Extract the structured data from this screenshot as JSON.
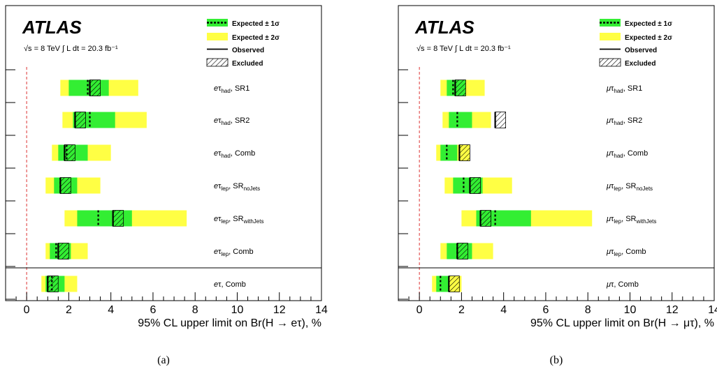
{
  "panels": [
    {
      "caption": "(a)",
      "experiment": "ATLAS",
      "energy": "√s = 8 TeV",
      "lumi": "∫ L dt = 20.3 fb⁻¹",
      "axis_label": "95% CL upper limit on Br(H → eτ), %",
      "legend": [
        "Expected ± 1σ",
        "Expected ± 2σ",
        "Observed",
        "Excluded"
      ]
    },
    {
      "caption": "(b)",
      "experiment": "ATLAS",
      "energy": "√s = 8 TeV",
      "lumi": "∫ L dt = 20.3 fb⁻¹",
      "axis_label": "95% CL upper limit on Br(H → μτ), %",
      "legend": [
        "Expected ± 1σ",
        "Expected ± 2σ",
        "Observed",
        "Excluded"
      ]
    }
  ],
  "colors": {
    "one_sigma": "#33ee33",
    "two_sigma": "#ffff44",
    "zero_line": "#dd3333"
  },
  "chart_data": [
    {
      "type": "bar",
      "xlim": [
        -1,
        14
      ],
      "xticks": [
        0,
        2,
        4,
        6,
        8,
        10,
        12,
        14
      ],
      "xlabel": "95% CL upper limit on Br(H → eτ), %",
      "legend": [
        "Expected ± 1σ",
        "Expected ± 2σ",
        "Observed",
        "Excluded"
      ],
      "categories": [
        {
          "lep": "e",
          "tau": "had",
          "tail": "SR1",
          "tailsub": ""
        },
        {
          "lep": "e",
          "tau": "had",
          "tail": "SR2",
          "tailsub": ""
        },
        {
          "lep": "e",
          "tau": "had",
          "tail": "Comb",
          "tailsub": ""
        },
        {
          "lep": "e",
          "tau": "lep",
          "tail": "SR",
          "tailsub": "noJets"
        },
        {
          "lep": "e",
          "tau": "lep",
          "tail": "SR",
          "tailsub": "withJets"
        },
        {
          "lep": "e",
          "tau": "lep",
          "tail": "Comb",
          "tailsub": ""
        },
        {
          "lep": "e",
          "tau": "",
          "tail": "Comb",
          "tailsub": ""
        }
      ],
      "expected": [
        2.9,
        3.0,
        1.9,
        1.6,
        3.4,
        1.4,
        1.2
      ],
      "observed": [
        3.0,
        2.3,
        1.8,
        1.6,
        4.1,
        1.5,
        1.0
      ],
      "sigma1_lo": [
        2.0,
        2.2,
        1.5,
        1.3,
        2.4,
        1.1,
        0.9
      ],
      "sigma1_hi": [
        3.9,
        4.2,
        2.9,
        2.4,
        5.0,
        2.1,
        1.8
      ],
      "sigma2_lo": [
        1.6,
        1.7,
        1.2,
        0.9,
        1.8,
        0.9,
        0.7
      ],
      "sigma2_hi": [
        5.3,
        5.7,
        4.0,
        3.5,
        7.6,
        2.9,
        2.4
      ]
    },
    {
      "type": "bar",
      "xlim": [
        -1,
        14
      ],
      "xticks": [
        0,
        2,
        4,
        6,
        8,
        10,
        12,
        14
      ],
      "xlabel": "95% CL upper limit on Br(H → μτ), %",
      "legend": [
        "Expected ± 1σ",
        "Expected ± 2σ",
        "Observed",
        "Excluded"
      ],
      "categories": [
        {
          "lep": "μ",
          "tau": "had",
          "tail": "SR1",
          "tailsub": ""
        },
        {
          "lep": "μ",
          "tau": "had",
          "tail": "SR2",
          "tailsub": ""
        },
        {
          "lep": "μ",
          "tau": "had",
          "tail": "Comb",
          "tailsub": ""
        },
        {
          "lep": "μ",
          "tau": "lep",
          "tail": "SR",
          "tailsub": "noJets"
        },
        {
          "lep": "μ",
          "tau": "lep",
          "tail": "SR",
          "tailsub": "withJets"
        },
        {
          "lep": "μ",
          "tau": "lep",
          "tail": "Comb",
          "tailsub": ""
        },
        {
          "lep": "μ",
          "tau": "",
          "tail": "Comb",
          "tailsub": ""
        }
      ],
      "expected": [
        1.6,
        1.8,
        1.3,
        2.1,
        3.6,
        1.8,
        1.0
      ],
      "observed": [
        1.7,
        3.6,
        1.9,
        2.4,
        2.9,
        1.8,
        1.4
      ],
      "sigma1_lo": [
        1.3,
        1.4,
        1.0,
        1.6,
        2.7,
        1.3,
        0.8
      ],
      "sigma1_hi": [
        2.2,
        2.5,
        1.8,
        3.0,
        5.3,
        2.5,
        1.4
      ],
      "sigma2_lo": [
        1.0,
        1.1,
        0.8,
        1.2,
        2.0,
        1.0,
        0.6
      ],
      "sigma2_hi": [
        3.1,
        3.4,
        2.4,
        4.4,
        8.2,
        3.5,
        2.0
      ]
    }
  ]
}
